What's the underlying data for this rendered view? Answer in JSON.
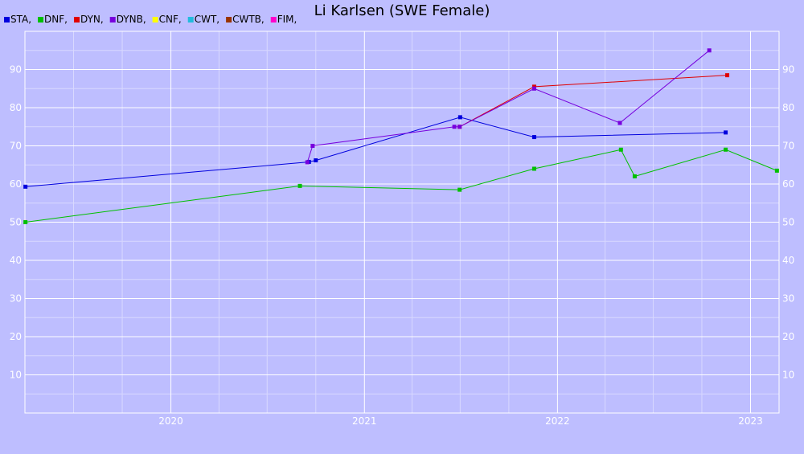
{
  "chart_data": {
    "type": "line",
    "title": "Li Karlsen (SWE Female)",
    "legend_placement": "top-left",
    "legend_separator": ",",
    "grid": true,
    "colors": {
      "background": "#bebeff",
      "grid_major": "#ffffff",
      "grid_minor": "#d8d8ff",
      "tick_label": "#ffffff"
    },
    "x_axis": {
      "type": "date",
      "range": [
        "2019-03-31",
        "2023-02-23"
      ],
      "tick_labels": [
        {
          "date": "2020-01-01",
          "label": "2020"
        },
        {
          "date": "2021-01-01",
          "label": "2021"
        },
        {
          "date": "2022-01-01",
          "label": "2022"
        },
        {
          "date": "2023-01-01",
          "label": "2023"
        }
      ],
      "minor_gridlines": [
        "2019-07-01",
        "2019-10-01",
        "2020-04-01",
        "2020-07-01",
        "2020-10-01",
        "2021-04-01",
        "2021-07-01",
        "2021-10-01",
        "2022-04-01",
        "2022-07-01",
        "2022-10-01"
      ]
    },
    "y_axis": {
      "range": [
        0,
        100
      ],
      "ticks": [
        10,
        20,
        30,
        40,
        50,
        60,
        70,
        80,
        90
      ],
      "minor_gridlines": [
        5,
        15,
        25,
        35,
        45,
        55,
        65,
        75,
        85,
        95
      ]
    },
    "series": [
      {
        "name": "STA",
        "color": "#0000dd",
        "points": [
          {
            "x": "2019-04-01",
            "y": 59.3
          },
          {
            "x": "2020-09-18",
            "y": 65.8
          },
          {
            "x": "2020-10-01",
            "y": 66.2
          },
          {
            "x": "2021-07-01",
            "y": 77.5
          },
          {
            "x": "2021-11-18",
            "y": 72.3
          },
          {
            "x": "2022-11-15",
            "y": 73.5
          }
        ]
      },
      {
        "name": "DNF",
        "color": "#00c000",
        "points": [
          {
            "x": "2019-04-01",
            "y": 50
          },
          {
            "x": "2020-09-01",
            "y": 59.5
          },
          {
            "x": "2021-06-30",
            "y": 58.5
          },
          {
            "x": "2021-11-18",
            "y": 64
          },
          {
            "x": "2022-05-01",
            "y": 69
          },
          {
            "x": "2022-05-27",
            "y": 62
          },
          {
            "x": "2022-11-15",
            "y": 69
          },
          {
            "x": "2023-02-20",
            "y": 63.5
          }
        ]
      },
      {
        "name": "DYN",
        "color": "#e00000",
        "points": [
          {
            "x": "2021-06-30",
            "y": 75
          },
          {
            "x": "2021-11-18",
            "y": 85.5
          },
          {
            "x": "2022-11-18",
            "y": 88.5
          }
        ]
      },
      {
        "name": "DYNB",
        "color": "#7700dd",
        "points": [
          {
            "x": "2020-09-15",
            "y": 65.7
          },
          {
            "x": "2020-09-25",
            "y": 70
          },
          {
            "x": "2021-06-20",
            "y": 75
          },
          {
            "x": "2021-06-30",
            "y": 75
          },
          {
            "x": "2021-11-18",
            "y": 85
          },
          {
            "x": "2022-04-29",
            "y": 76
          },
          {
            "x": "2022-10-15",
            "y": 95
          }
        ]
      },
      {
        "name": "CNF",
        "color": "#ffff00",
        "points": []
      },
      {
        "name": "CWT",
        "color": "#22bbdd",
        "points": []
      },
      {
        "name": "CWTB",
        "color": "#993300",
        "points": []
      },
      {
        "name": "FIM",
        "color": "#ff00cc",
        "points": []
      }
    ]
  }
}
